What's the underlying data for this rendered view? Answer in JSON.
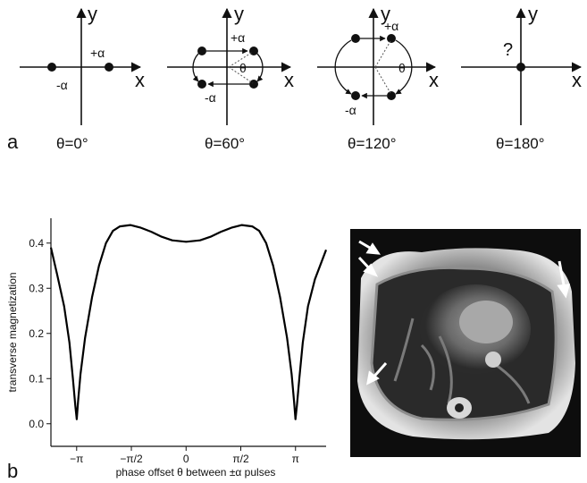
{
  "panel_a": {
    "label": "a",
    "diagrams": [
      {
        "theta_caption": "θ=0°",
        "y_label": "y",
        "x_label": "x",
        "plus_label": "+α",
        "minus_label": "-α",
        "theta_symbol": ""
      },
      {
        "theta_caption": "θ=60°",
        "y_label": "y",
        "x_label": "x",
        "plus_label": "+α",
        "minus_label": "-α",
        "theta_symbol": "θ"
      },
      {
        "theta_caption": "θ=120°",
        "y_label": "y",
        "x_label": "x",
        "plus_label": "+α",
        "minus_label": "-α",
        "theta_symbol": "θ"
      },
      {
        "theta_caption": "θ=180°",
        "y_label": "y",
        "x_label": "x",
        "question_mark": "?"
      }
    ]
  },
  "panel_b": {
    "label": "b",
    "image_description": "cardiac MR image with white arrows"
  },
  "chart_data": {
    "type": "line",
    "title": "",
    "xlabel": "phase offset θ between ±α pulses",
    "ylabel": "transverse magnetization",
    "xlim": [
      -3.88,
      4.02
    ],
    "ylim": [
      -0.05,
      0.455
    ],
    "x_ticks": [
      {
        "value": -3.14159,
        "label": "−π"
      },
      {
        "value": -1.5708,
        "label": "−π/2"
      },
      {
        "value": 0,
        "label": "0"
      },
      {
        "value": 1.5708,
        "label": "π/2"
      },
      {
        "value": 3.14159,
        "label": "π"
      }
    ],
    "y_ticks": [
      {
        "value": 0.0,
        "label": "0.0"
      },
      {
        "value": 0.1,
        "label": "0.1"
      },
      {
        "value": 0.2,
        "label": "0.2"
      },
      {
        "value": 0.3,
        "label": "0.3"
      },
      {
        "value": 0.4,
        "label": "0.4"
      }
    ],
    "grid": false,
    "series": [
      {
        "color": "#000000",
        "x": [
          -3.88,
          -3.7,
          -3.5,
          -3.35,
          -3.25,
          -3.18,
          -3.14,
          -3.1,
          -3.03,
          -2.9,
          -2.7,
          -2.5,
          -2.3,
          -2.1,
          -1.9,
          -1.6,
          -1.3,
          -1.0,
          -0.7,
          -0.4,
          0.0,
          0.4,
          0.7,
          1.0,
          1.3,
          1.6,
          1.9,
          2.1,
          2.3,
          2.5,
          2.7,
          2.9,
          3.03,
          3.1,
          3.14,
          3.18,
          3.25,
          3.35,
          3.5,
          3.7,
          4.02
        ],
        "y": [
          0.39,
          0.33,
          0.26,
          0.18,
          0.1,
          0.04,
          0.01,
          0.05,
          0.11,
          0.19,
          0.28,
          0.35,
          0.4,
          0.427,
          0.437,
          0.44,
          0.434,
          0.425,
          0.414,
          0.406,
          0.403,
          0.406,
          0.414,
          0.425,
          0.434,
          0.44,
          0.437,
          0.427,
          0.4,
          0.35,
          0.28,
          0.19,
          0.11,
          0.05,
          0.01,
          0.04,
          0.1,
          0.18,
          0.26,
          0.32,
          0.385
        ]
      }
    ]
  }
}
